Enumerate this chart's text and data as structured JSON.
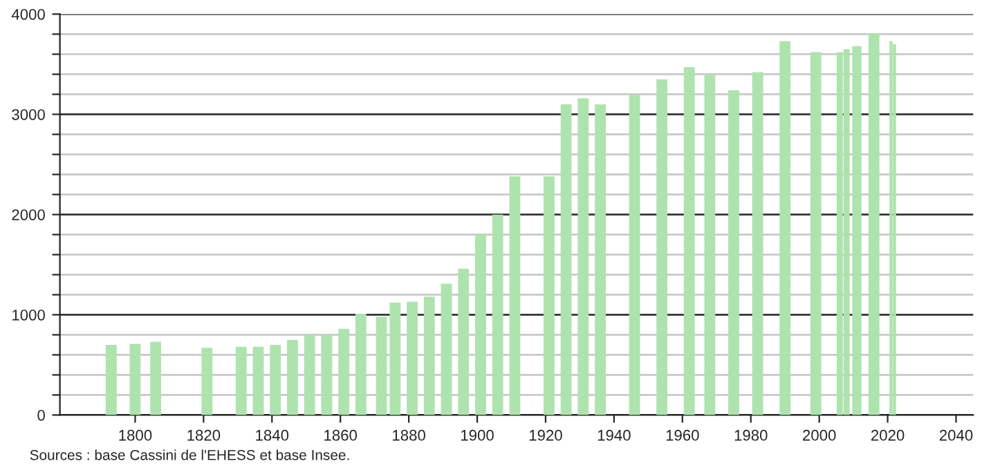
{
  "chart_data": {
    "type": "bar",
    "x": [
      1793,
      1800,
      1806,
      1821,
      1831,
      1836,
      1841,
      1846,
      1851,
      1856,
      1861,
      1866,
      1872,
      1876,
      1881,
      1886,
      1891,
      1896,
      1901,
      1906,
      1911,
      1921,
      1926,
      1931,
      1936,
      1946,
      1954,
      1962,
      1968,
      1975,
      1982,
      1990,
      1999,
      2006,
      2008,
      2011,
      2016,
      2021,
      2022
    ],
    "values": [
      700,
      710,
      730,
      670,
      680,
      680,
      700,
      750,
      800,
      800,
      860,
      1010,
      980,
      1120,
      1130,
      1180,
      1310,
      1460,
      1800,
      2000,
      2380,
      2380,
      3100,
      3160,
      3100,
      3190,
      3350,
      3470,
      3390,
      3240,
      3420,
      3730,
      3620,
      3620,
      3650,
      3680,
      3810,
      3730,
      3700
    ],
    "color": "#aee3ae",
    "xlim": [
      1778,
      2045
    ],
    "xticks": [
      1800,
      1820,
      1840,
      1860,
      1880,
      1900,
      1920,
      1940,
      1960,
      1980,
      2000,
      2020,
      2040
    ],
    "ylim": [
      0,
      4000
    ],
    "yticks": [
      0,
      {
        "value": 200,
        "label": null
      },
      {
        "value": 400,
        "label": null
      },
      {
        "value": 600,
        "label": null
      },
      {
        "value": 800,
        "label": null
      },
      1000,
      {
        "value": 1200,
        "label": null
      },
      {
        "value": 1400,
        "label": null
      },
      {
        "value": 1600,
        "label": null
      },
      {
        "value": 1800,
        "label": null
      },
      2000,
      {
        "value": 2200,
        "label": null
      },
      {
        "value": 2400,
        "label": null
      },
      {
        "value": 2600,
        "label": null
      },
      {
        "value": 2800,
        "label": null
      },
      3000,
      {
        "value": 3200,
        "label": null
      },
      {
        "value": 3400,
        "label": null
      },
      {
        "value": 3600,
        "label": null
      },
      {
        "value": 3800,
        "label": null
      },
      4000
    ],
    "grid": "y",
    "annotations": [
      "Sources : base Cassini de l'EHESS et base Insee."
    ]
  }
}
